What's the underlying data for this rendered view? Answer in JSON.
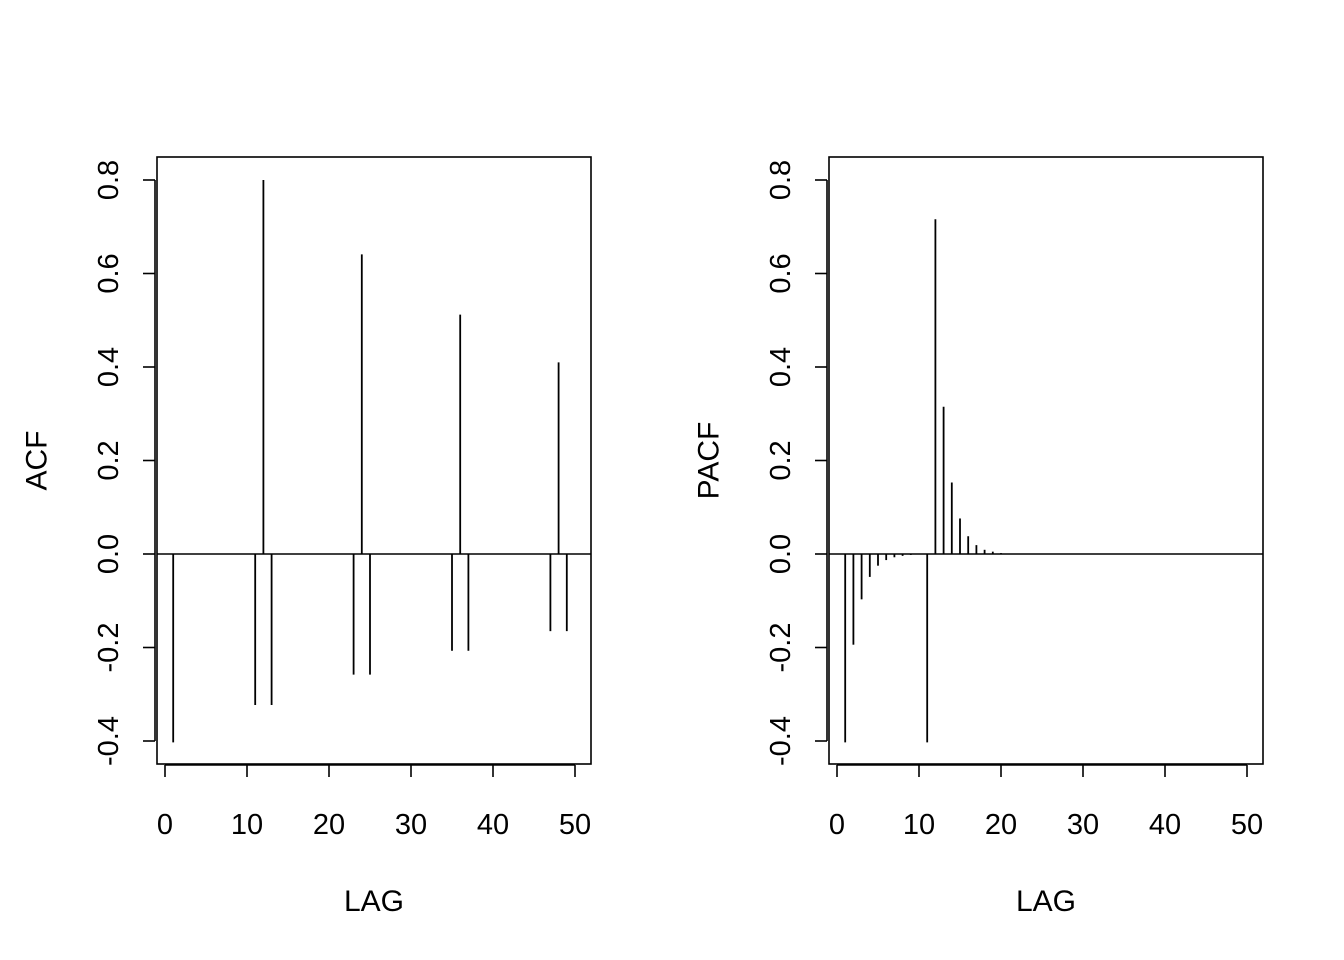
{
  "chart_data": [
    {
      "type": "bar",
      "subtype": "acf-spikes",
      "title": "",
      "xlabel": "LAG",
      "ylabel": "ACF",
      "xlim": [
        0,
        52
      ],
      "ylim": [
        -0.45,
        0.85
      ],
      "xticks": [
        0,
        10,
        20,
        30,
        40,
        50
      ],
      "yticks": [
        -0.4,
        -0.2,
        0.0,
        0.2,
        0.4,
        0.6,
        0.8
      ],
      "xtick_labels": [
        "0",
        "10",
        "20",
        "30",
        "40",
        "50"
      ],
      "ytick_labels": [
        "-0.4",
        "-0.2",
        "0.0",
        "0.2",
        "0.4",
        "0.6",
        "0.8"
      ],
      "zero_line": true,
      "grid": false,
      "lags": [
        1,
        11,
        12,
        13,
        23,
        24,
        25,
        35,
        36,
        37,
        47,
        48,
        49
      ],
      "values": [
        -0.403,
        -0.323,
        0.8,
        -0.323,
        -0.258,
        0.641,
        -0.258,
        -0.207,
        0.512,
        -0.207,
        -0.165,
        0.41,
        -0.165
      ]
    },
    {
      "type": "bar",
      "subtype": "pacf-spikes",
      "title": "",
      "xlabel": "LAG",
      "ylabel": "PACF",
      "xlim": [
        0,
        52
      ],
      "ylim": [
        -0.45,
        0.85
      ],
      "xticks": [
        0,
        10,
        20,
        30,
        40,
        50
      ],
      "yticks": [
        -0.4,
        -0.2,
        0.0,
        0.2,
        0.4,
        0.6,
        0.8
      ],
      "xtick_labels": [
        "0",
        "10",
        "20",
        "30",
        "40",
        "50"
      ],
      "ytick_labels": [
        "-0.4",
        "-0.2",
        "0.0",
        "0.2",
        "0.4",
        "0.6",
        "0.8"
      ],
      "zero_line": true,
      "grid": false,
      "lags": [
        1,
        2,
        3,
        4,
        5,
        6,
        7,
        8,
        9,
        10,
        11,
        12,
        13,
        14,
        15,
        16,
        17,
        18,
        19,
        20
      ],
      "values": [
        -0.403,
        -0.194,
        -0.097,
        -0.049,
        -0.025,
        -0.013,
        -0.007,
        -0.004,
        -0.002,
        -0.001,
        -0.403,
        0.716,
        0.315,
        0.153,
        0.076,
        0.038,
        0.019,
        0.009,
        0.005,
        0.002
      ]
    }
  ]
}
